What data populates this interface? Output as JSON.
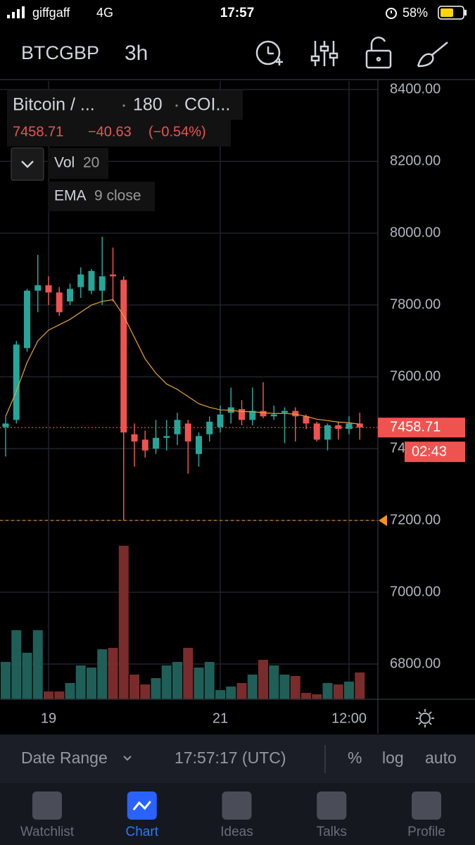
{
  "status_bar": {
    "carrier": "giffgaff",
    "network": "4G",
    "time": "17:57",
    "battery": "58%"
  },
  "header": {
    "symbol": "BTCGBP",
    "interval": "3h"
  },
  "legend": {
    "title": "Bitcoin / ...",
    "interval": "180",
    "exchange": "COI...",
    "change": "−40.63",
    "change_pct": "(−0.54%)",
    "indicators": [
      {
        "name": "Vol",
        "param": "20"
      },
      {
        "name": "EMA",
        "param": "9 close"
      }
    ]
  },
  "chart_data": {
    "type": "candlestick",
    "categories": [
      null,
      null,
      null,
      null,
      "19",
      null,
      null,
      null,
      null,
      null,
      null,
      null,
      null,
      null,
      null,
      null,
      null,
      null,
      null,
      null,
      "21",
      null,
      null,
      null,
      null,
      null,
      null,
      null,
      null,
      null,
      null,
      null,
      "12:00",
      null
    ],
    "open": [
      7460,
      7480,
      7680,
      7840,
      7855,
      7835,
      7810,
      7850,
      7840,
      7840,
      7885,
      7870,
      7440,
      7425,
      7400,
      7430,
      7440,
      7470,
      7385,
      7440,
      7460,
      7500,
      7510,
      7480,
      7505,
      7490,
      7500,
      7505,
      7490,
      7470,
      7425,
      7465,
      7455,
      7470
    ],
    "high": [
      7490,
      7700,
      7845,
      7940,
      7880,
      7850,
      7860,
      7905,
      7900,
      7990,
      7960,
      7880,
      7470,
      7450,
      7480,
      7480,
      7500,
      7480,
      7445,
      7490,
      7520,
      7570,
      7535,
      7570,
      7585,
      7520,
      7515,
      7515,
      7495,
      7475,
      7470,
      7475,
      7490,
      7500
    ],
    "low": [
      7378,
      7470,
      7670,
      7780,
      7800,
      7770,
      7800,
      7820,
      7830,
      7800,
      7810,
      7200,
      7350,
      7375,
      7385,
      7395,
      7410,
      7330,
      7350,
      7420,
      7445,
      7470,
      7465,
      7465,
      7485,
      7480,
      7415,
      7420,
      7455,
      7420,
      7395,
      7425,
      7440,
      7425
    ],
    "close": [
      7470,
      7690,
      7840,
      7855,
      7835,
      7780,
      7845,
      7885,
      7895,
      7880,
      7880,
      7445,
      7420,
      7395,
      7430,
      7435,
      7480,
      7420,
      7435,
      7475,
      7495,
      7515,
      7480,
      7505,
      7490,
      7495,
      7505,
      7490,
      7470,
      7425,
      7465,
      7455,
      7470,
      7458.71
    ],
    "volume": [
      53,
      98,
      66,
      98,
      11,
      11,
      23,
      48,
      45,
      71,
      73,
      218,
      35,
      21,
      30,
      48,
      53,
      73,
      45,
      53,
      13,
      18,
      23,
      35,
      56,
      48,
      35,
      33,
      9,
      7,
      23,
      21,
      25,
      38
    ],
    "ema": [
      7490,
      7560,
      7640,
      7700,
      7730,
      7745,
      7760,
      7780,
      7800,
      7810,
      7815,
      7770,
      7710,
      7650,
      7610,
      7580,
      7565,
      7545,
      7525,
      7515,
      7508,
      7507,
      7503,
      7503,
      7500,
      7498,
      7498,
      7496,
      7490,
      7482,
      7478,
      7474,
      7472,
      7468
    ],
    "up_color": "#26a69a",
    "down_color": "#ef5350",
    "up_volume_color": "#1f5f58",
    "down_volume_color": "#7a2b2b",
    "ema_color": "#e8a33a",
    "ylim": [
      6702,
      8424
    ],
    "yticks": [
      {
        "value": 6800,
        "label": "6800.00"
      },
      {
        "value": 7000,
        "label": "7000.00"
      },
      {
        "value": 7200,
        "label": "7200.00"
      },
      {
        "value": 7400,
        "label": "7400.00"
      },
      {
        "value": 7600,
        "label": "7600.00"
      },
      {
        "value": 7800,
        "label": "7800.00"
      },
      {
        "value": 8000,
        "label": "8000.00"
      },
      {
        "value": 8200,
        "label": "8200.00"
      },
      {
        "value": 8400,
        "label": "8400.00"
      }
    ],
    "grid": true,
    "countdown": "02:43",
    "alert_level": 7200
  },
  "bottom_bar": {
    "date_range": "Date Range",
    "time": "17:57:17 (UTC)",
    "percent": "%",
    "log": "log",
    "auto": "auto"
  },
  "tabs": [
    "Watchlist",
    "Chart",
    "Ideas",
    "Talks",
    "Profile"
  ],
  "active_tab": 1
}
